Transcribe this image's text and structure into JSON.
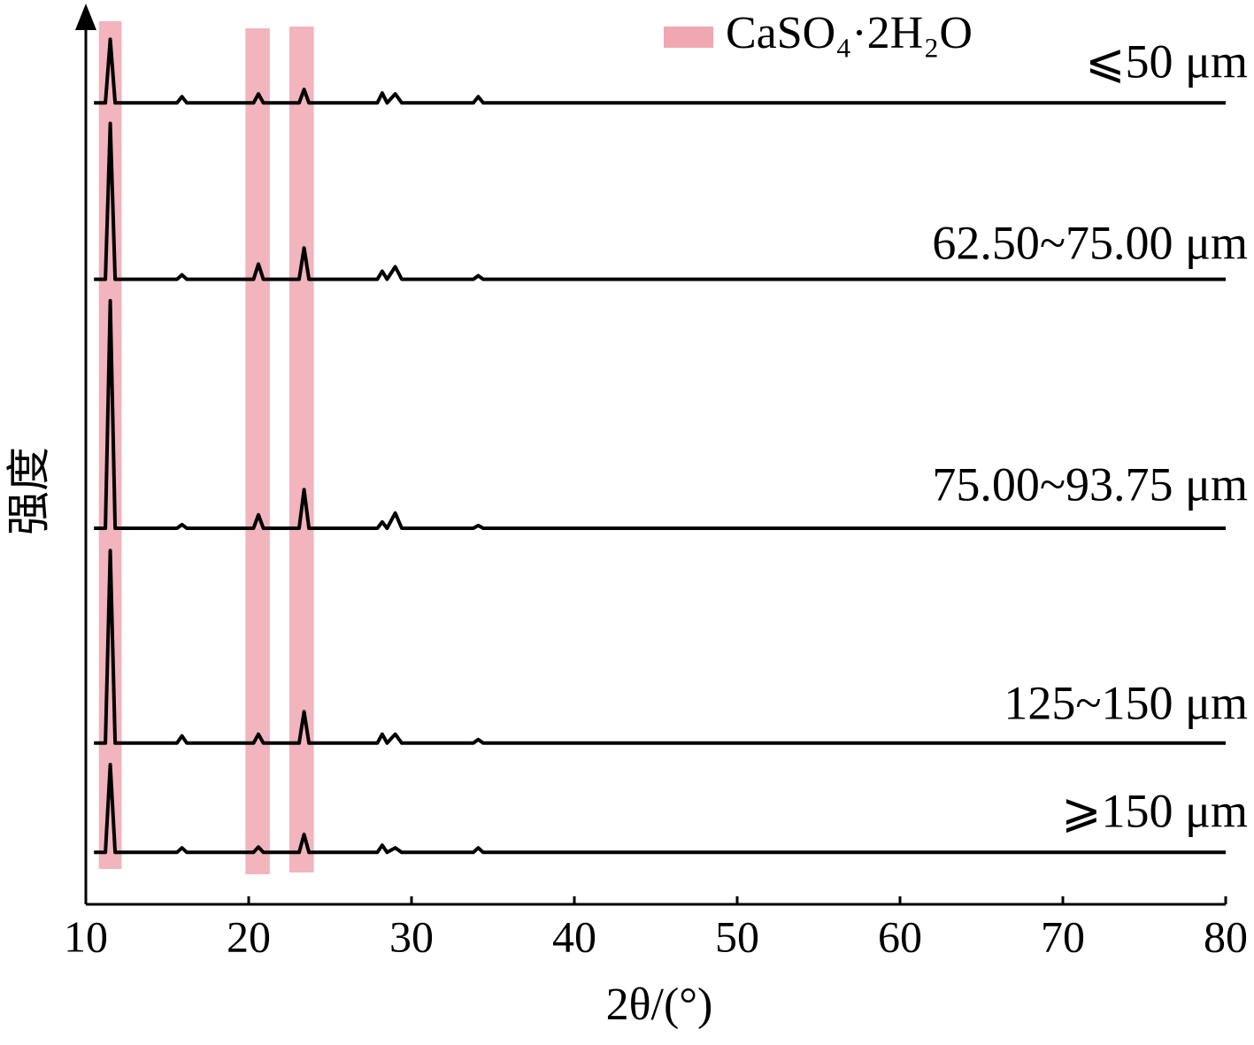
{
  "chart_data": {
    "type": "line",
    "xlabel": "2θ/(°)",
    "ylabel": "强度",
    "xlim": [
      10,
      80
    ],
    "xticks": [
      10,
      20,
      30,
      40,
      50,
      60,
      70,
      80
    ],
    "ylim": [
      0,
      100
    ],
    "legend": {
      "label": "CaSO₄·2H₂O",
      "color": "#f0a7b2"
    },
    "bands": [
      [
        10.8,
        12.2
      ],
      [
        19.8,
        21.3
      ],
      [
        22.5,
        24.0
      ]
    ],
    "x": [
      10.5,
      11.2,
      11.5,
      11.8,
      15.6,
      15.9,
      16.2,
      20.3,
      20.6,
      20.9,
      23.1,
      23.4,
      23.7,
      27.9,
      28.2,
      28.5,
      29.0,
      29.4,
      33.8,
      34.1,
      34.4,
      80
    ],
    "series": [
      {
        "name": "⩽50 μm",
        "color": "#000000",
        "values": [
          89.5,
          89.5,
          96.6,
          89.5,
          89.5,
          90.2,
          89.5,
          89.5,
          90.5,
          89.5,
          89.5,
          91.0,
          89.5,
          89.5,
          90.6,
          89.5,
          90.5,
          89.5,
          89.5,
          90.2,
          89.5,
          89.5
        ]
      },
      {
        "name": "62.50~75.00 μm",
        "color": "#000000",
        "values": [
          69.8,
          69.8,
          87.2,
          69.8,
          69.8,
          70.3,
          69.8,
          69.8,
          71.5,
          69.8,
          69.8,
          73.3,
          69.8,
          69.8,
          70.7,
          69.8,
          71.2,
          69.8,
          69.8,
          70.2,
          69.8,
          69.8
        ]
      },
      {
        "name": "75.00~93.75 μm",
        "color": "#000000",
        "values": [
          42.0,
          42.0,
          67.4,
          42.0,
          42.0,
          42.4,
          42.0,
          42.0,
          43.5,
          42.0,
          42.0,
          46.3,
          42.0,
          42.0,
          42.7,
          42.0,
          43.7,
          42.0,
          42.0,
          42.3,
          42.0,
          42.0
        ]
      },
      {
        "name": "125~150 μm",
        "color": "#000000",
        "values": [
          18.0,
          18.0,
          39.5,
          18.0,
          18.0,
          18.8,
          18.0,
          18.0,
          19.0,
          18.0,
          18.0,
          21.5,
          18.0,
          18.0,
          19.0,
          18.0,
          19.0,
          18.0,
          18.0,
          18.4,
          18.0,
          18.0
        ]
      },
      {
        "name": "⩾150 μm",
        "color": "#000000",
        "values": [
          5.8,
          5.8,
          15.6,
          5.8,
          5.8,
          6.3,
          5.8,
          5.8,
          6.4,
          5.8,
          5.8,
          7.8,
          5.8,
          5.8,
          6.6,
          5.8,
          6.3,
          5.8,
          5.8,
          6.3,
          5.8,
          5.8
        ]
      }
    ]
  }
}
